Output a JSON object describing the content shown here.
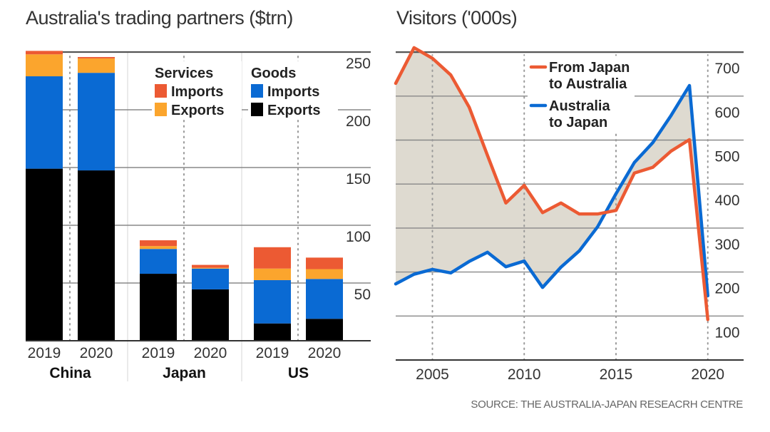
{
  "chart_data": [
    {
      "type": "bar",
      "stacked": true,
      "title": "Australia's trading partners ($trn)",
      "xlabel": "",
      "ylabel": "",
      "ylim": [
        0,
        250
      ],
      "yticks": [
        50,
        100,
        150,
        200,
        250
      ],
      "groups": [
        {
          "name": "China",
          "categories": [
            "2019",
            "2020"
          ]
        },
        {
          "name": "Japan",
          "categories": [
            "2019",
            "2020"
          ]
        },
        {
          "name": "US",
          "categories": [
            "2019",
            "2020"
          ]
        }
      ],
      "categories": [
        "China 2019",
        "China 2020",
        "Japan 2019",
        "Japan 2020",
        "US 2019",
        "US 2020"
      ],
      "series": [
        {
          "name": "Goods Exports",
          "group": "Goods",
          "label": "Exports",
          "color": "#000000",
          "values": [
            149,
            147.5,
            58,
            44.5,
            15,
            19
          ]
        },
        {
          "name": "Goods Imports",
          "group": "Goods",
          "label": "Imports",
          "color": "#0a6ad3",
          "values": [
            80,
            84.5,
            21.5,
            18,
            37.5,
            34.5
          ]
        },
        {
          "name": "Services Exports",
          "group": "Services",
          "label": "Exports",
          "color": "#fba52d",
          "values": [
            19,
            12.5,
            2.5,
            0.7,
            10,
            8.5
          ]
        },
        {
          "name": "Services Imports",
          "group": "Services",
          "label": "Imports",
          "color": "#ec5a33",
          "values": [
            3,
            1.2,
            5,
            2.5,
            18.5,
            10
          ]
        }
      ],
      "legend": {
        "placement": "top-right",
        "groups": [
          {
            "title": "Services",
            "items": [
              {
                "label": "Imports",
                "color": "#ec5a33"
              },
              {
                "label": "Exports",
                "color": "#fba52d"
              }
            ]
          },
          {
            "title": "Goods",
            "items": [
              {
                "label": "Imports",
                "color": "#0a6ad3"
              },
              {
                "label": "Exports",
                "color": "#000000"
              }
            ]
          }
        ]
      },
      "grid": true
    },
    {
      "type": "line",
      "title": "Visitors ('000s)",
      "xlabel": "",
      "ylabel": "",
      "x": [
        2003,
        2004,
        2005,
        2006,
        2007,
        2008,
        2009,
        2010,
        2011,
        2012,
        2013,
        2014,
        2015,
        2016,
        2017,
        2018,
        2019,
        2020
      ],
      "xlim": [
        2003,
        2021
      ],
      "xticks": [
        2005,
        2010,
        2015,
        2020
      ],
      "ylim": [
        0,
        700
      ],
      "yticks": [
        100,
        200,
        300,
        400,
        500,
        600,
        700
      ],
      "series": [
        {
          "name": "From Japan to Australia",
          "color": "#ec5a33",
          "values": [
            629,
            710,
            686,
            648,
            575,
            465,
            357,
            397,
            335,
            357,
            332,
            332,
            340,
            425,
            438,
            475,
            501,
            92
          ]
        },
        {
          "name": "Australia to Japan",
          "color": "#0a6ad3",
          "values": [
            173,
            195,
            206,
            198,
            224,
            245,
            212,
            225,
            165,
            211,
            248,
            303,
            378,
            449,
            494,
            556,
            624,
            146
          ]
        }
      ],
      "fill_between": {
        "color": "#dedad0"
      },
      "legend": {
        "placement": "top-right",
        "items": [
          {
            "label_line1": "From Japan",
            "label_line2": "to Australia",
            "color": "#ec5a33"
          },
          {
            "label_line1": "Australia",
            "label_line2": "to Japan",
            "color": "#0a6ad3"
          }
        ]
      },
      "grid": true
    }
  ],
  "source": "SOURCE: THE AUSTRALIA-JAPAN RESEACRH CENTRE"
}
